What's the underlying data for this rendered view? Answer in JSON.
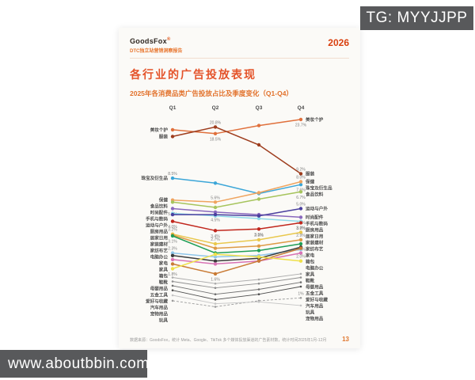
{
  "watermarks": {
    "top_right": "TG: MYYJJPP",
    "bottom_left": "www.aboutbbin.com"
  },
  "page": {
    "brand": "GoodsFox",
    "brand_reg": "®",
    "brand_tagline": "DTC独立站营销洞察报告",
    "year_badge": "2026",
    "title": "各行业的广告投放表现",
    "subtitle": "2025年各消费品类广告投放占比及季度变化（Q1-Q4）",
    "footer_source": "数据来源：GoodsFox，统计 Meta、Google、TikTok 多个媒体投放渠道的广告素材数，统计时间2025年1月-12月",
    "page_number": "13"
  },
  "colors": {
    "accent": "#e4532a",
    "watermark_bg": "#58595b",
    "card_bg": "#fbfaf7"
  },
  "chart_data": {
    "type": "line",
    "variant": "bump",
    "title": "2025年各消费品类广告投放占比及季度变化（Q1-Q4）",
    "unit": "%",
    "x_categories": [
      "Q1",
      "Q2",
      "Q3",
      "Q4"
    ],
    "y_scale": "log",
    "ylim": [
      0.8,
      24
    ],
    "grid": false,
    "legend_position": "row-labels-left-right",
    "series": [
      {
        "name": "美妆个护",
        "color": "#e0703c",
        "values": [
          19.8,
          18.5,
          21.3,
          23.7
        ],
        "point_labels": [
          {
            "q": 1,
            "text": "18.5%",
            "side": "below"
          },
          {
            "q": 3,
            "text": "23.7%",
            "side": "below"
          }
        ]
      },
      {
        "name": "服装",
        "color": "#9e3d1e",
        "values": [
          17.6,
          20.8,
          15.2,
          9.2
        ],
        "point_labels": [
          {
            "q": 1,
            "text": "20.8%",
            "side": "above"
          },
          {
            "q": 3,
            "text": "9.2%",
            "side": "above"
          }
        ]
      },
      {
        "name": "珠宝及衍生品",
        "color": "#3ba6d8",
        "values": [
          8.5,
          7.8,
          6.5,
          7.6
        ],
        "point_labels": [
          {
            "q": 0,
            "text": "8.5%",
            "side": "above"
          },
          {
            "q": 3,
            "text": "7.6%",
            "side": "below"
          }
        ]
      },
      {
        "name": "保健",
        "color": "#efa45f",
        "values": [
          5.8,
          5.6,
          6.6,
          8.0
        ],
        "point_labels": [
          {
            "q": 1,
            "text": "5.6%",
            "side": "above"
          },
          {
            "q": 3,
            "text": "8.0%",
            "side": "above"
          }
        ]
      },
      {
        "name": "食品饮料",
        "color": "#a6c45c",
        "values": [
          5.6,
          5.1,
          5.9,
          6.7
        ],
        "point_labels": [
          {
            "q": 3,
            "text": "6.7%",
            "side": "below"
          }
        ]
      },
      {
        "name": "时尚配件",
        "color": "#8a68bd",
        "values": [
          5.0,
          4.7,
          4.5,
          4.3
        ],
        "point_labels": [
          {
            "q": 0,
            "text": "5.0%",
            "side": "below"
          },
          {
            "q": 3,
            "text": "4.3%",
            "side": "below"
          }
        ]
      },
      {
        "name": "手机与数码",
        "color": "#8fd9e9",
        "values": [
          4.6,
          4.4,
          4.2,
          4.0
        ],
        "point_labels": []
      },
      {
        "name": "运动与户外",
        "color": "#4a3f9e",
        "values": [
          4.5,
          4.5,
          4.4,
          5.0
        ],
        "point_labels": [
          {
            "q": 1,
            "text": "4.5%",
            "side": "below"
          },
          {
            "q": 3,
            "text": "5.0%",
            "side": "above"
          }
        ]
      },
      {
        "name": "厨房用品",
        "color": "#c1271d",
        "values": [
          4.0,
          3.4,
          3.5,
          3.9
        ],
        "point_labels": [
          {
            "q": 0,
            "text": "4.0%",
            "side": "below"
          },
          {
            "q": 1,
            "text": "3.4%",
            "side": "below"
          },
          {
            "q": 2,
            "text": "3.5%",
            "side": "below"
          },
          {
            "q": 3,
            "text": "3.9%",
            "side": "below"
          }
        ]
      },
      {
        "name": "居家日用",
        "color": "#e9c84d",
        "values": [
          3.2,
          2.7,
          2.9,
          3.3
        ],
        "point_labels": [
          {
            "q": 0,
            "text": "3.2%",
            "side": "above"
          },
          {
            "q": 1,
            "text": "2.7%",
            "side": "above"
          },
          {
            "q": 2,
            "text": "2.9%",
            "side": "above"
          },
          {
            "q": 3,
            "text": "3.3%",
            "side": "above"
          }
        ]
      },
      {
        "name": "家装建材",
        "color": "#dd9a45",
        "values": [
          3.15,
          2.5,
          2.6,
          2.9
        ],
        "point_labels": [
          {
            "q": 3,
            "text": "2.9%",
            "side": "above"
          }
        ]
      },
      {
        "name": "家纺布艺",
        "color": "#1f9e57",
        "values": [
          3.1,
          2.3,
          2.4,
          2.7
        ],
        "point_labels": [
          {
            "q": 0,
            "text": "3.1%",
            "side": "below"
          },
          {
            "q": 3,
            "text": "2.7%",
            "side": "below"
          }
        ]
      },
      {
        "name": "电脑办公",
        "color": "#8fc6ea",
        "values": [
          2.3,
          2.15,
          2.2,
          2.45
        ],
        "point_labels": [
          {
            "q": 0,
            "text": "2.3%",
            "side": "above"
          }
        ]
      },
      {
        "name": "家电",
        "color": "#3b3b3b",
        "values": [
          2.2,
          2.0,
          2.1,
          2.55
        ],
        "point_labels": []
      },
      {
        "name": "家具",
        "color": "#d873b5",
        "values": [
          2.05,
          1.9,
          2.0,
          2.3
        ],
        "point_labels": []
      },
      {
        "name": "箱包",
        "color": "#c97b35",
        "values": [
          1.9,
          1.6,
          2.0,
          2.5
        ],
        "point_labels": [
          {
            "q": 1,
            "text": "1.6%",
            "side": "below"
          }
        ]
      },
      {
        "name": "鞋靴",
        "color": "#efe04a",
        "values": [
          1.75,
          2.25,
          2.15,
          2.0
        ],
        "point_labels": [
          {
            "q": 0,
            "text": "1.8%",
            "side": "below"
          },
          {
            "q": 3,
            "text": "2.0%",
            "side": "above"
          }
        ]
      },
      {
        "name": "母婴用品",
        "color": "#ababab",
        "minor": true,
        "values": [
          1.5,
          1.35,
          1.45,
          1.6
        ],
        "point_labels": []
      },
      {
        "name": "五金工具",
        "color": "#8f8f8f",
        "minor": true,
        "values": [
          1.4,
          1.25,
          1.35,
          1.5
        ],
        "point_labels": []
      },
      {
        "name": "爱好与收藏",
        "color": "#6f6f6f",
        "minor": true,
        "values": [
          1.3,
          1.12,
          1.22,
          1.38
        ],
        "point_labels": []
      },
      {
        "name": "汽车用品",
        "color": "#4e4e4e",
        "minor": true,
        "values": [
          1.2,
          1.02,
          1.12,
          1.28
        ],
        "point_labels": []
      },
      {
        "name": "玩具",
        "color": "#9b9b9b",
        "minor": true,
        "dashed": true,
        "values": [
          1.0,
          0.9,
          1.0,
          1.05
        ],
        "point_labels": [
          {
            "q": 3,
            "text": "1%",
            "side": "above"
          }
        ]
      },
      {
        "name": "宠物用品",
        "color": "#c4c4c4",
        "minor": true,
        "values": [
          1.1,
          0.95,
          0.98,
          0.92
        ],
        "point_labels": []
      }
    ]
  }
}
